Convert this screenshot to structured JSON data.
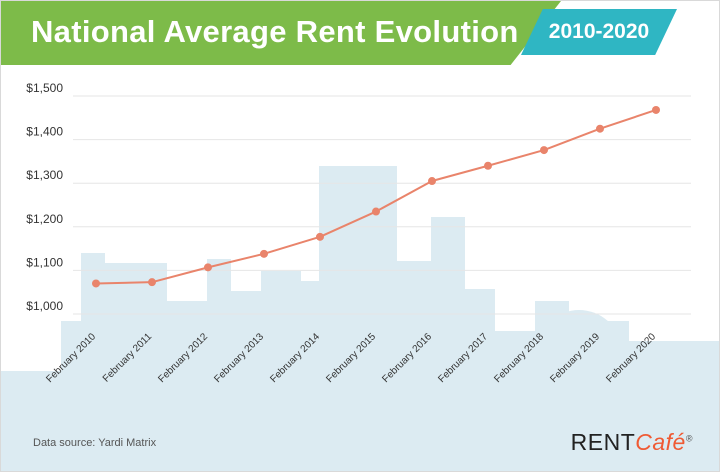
{
  "header": {
    "title": "National Average Rent Evolution",
    "range": "2010-2020"
  },
  "footer": {
    "source": "Data source: Yardi Matrix",
    "logo_main": "RENT",
    "logo_accent": "Café",
    "logo_mark": "®"
  },
  "colors": {
    "title_band": "#7dbb49",
    "range_badge": "#2fb6c3",
    "line": "#e9846b",
    "point": "#e9846b",
    "skyline": "#dcebf2",
    "grid": "#e6e6e6"
  },
  "chart_data": {
    "type": "line",
    "title": "National Average Rent Evolution",
    "subtitle": "2010-2020",
    "categories": [
      "February 2010",
      "February 2011",
      "February 2012",
      "February 2013",
      "February 2014",
      "February 2015",
      "February 2016",
      "February 2017",
      "February 2018",
      "February 2019",
      "February 2020"
    ],
    "series": [
      {
        "values": [
          1070,
          1073,
          1107,
          1138,
          1177,
          1235,
          1305,
          1340,
          1376,
          1425,
          1468
        ]
      }
    ],
    "yticks": [
      "$1,000",
      "$1,100",
      "$1,200",
      "$1,300",
      "$1,400",
      "$1,500"
    ],
    "ylim": [
      1000,
      1500
    ],
    "grid": true,
    "legend": "none"
  }
}
